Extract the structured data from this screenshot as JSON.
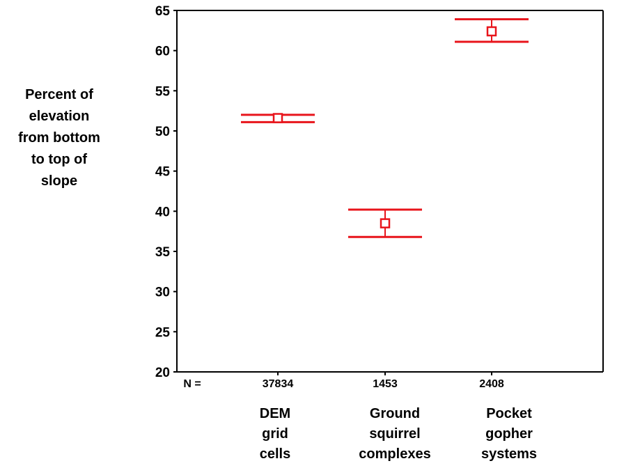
{
  "chart_data": {
    "type": "errorbar",
    "title": "",
    "ylabel": [
      "Percent of",
      "elevation",
      "from bottom",
      "to top of",
      "slope"
    ],
    "xlabel": "",
    "ylim": [
      20,
      65
    ],
    "yticks": [
      20,
      25,
      30,
      35,
      40,
      45,
      50,
      55,
      60,
      65
    ],
    "n_label": "N =",
    "categories": [
      {
        "label_lines": [
          "DEM",
          "grid",
          "cells"
        ],
        "n": "37834",
        "mean": 51.6,
        "lower": 51.1,
        "upper": 52.0
      },
      {
        "label_lines": [
          "Ground",
          "squirrel",
          "complexes"
        ],
        "n": "1453",
        "mean": 38.5,
        "lower": 36.8,
        "upper": 40.2
      },
      {
        "label_lines": [
          "Pocket",
          "gopher",
          "systems"
        ],
        "n": "2408",
        "mean": 62.4,
        "lower": 61.1,
        "upper": 63.9
      }
    ],
    "series_color": "#e8141b",
    "axis_color": "#000000",
    "grid": false
  }
}
